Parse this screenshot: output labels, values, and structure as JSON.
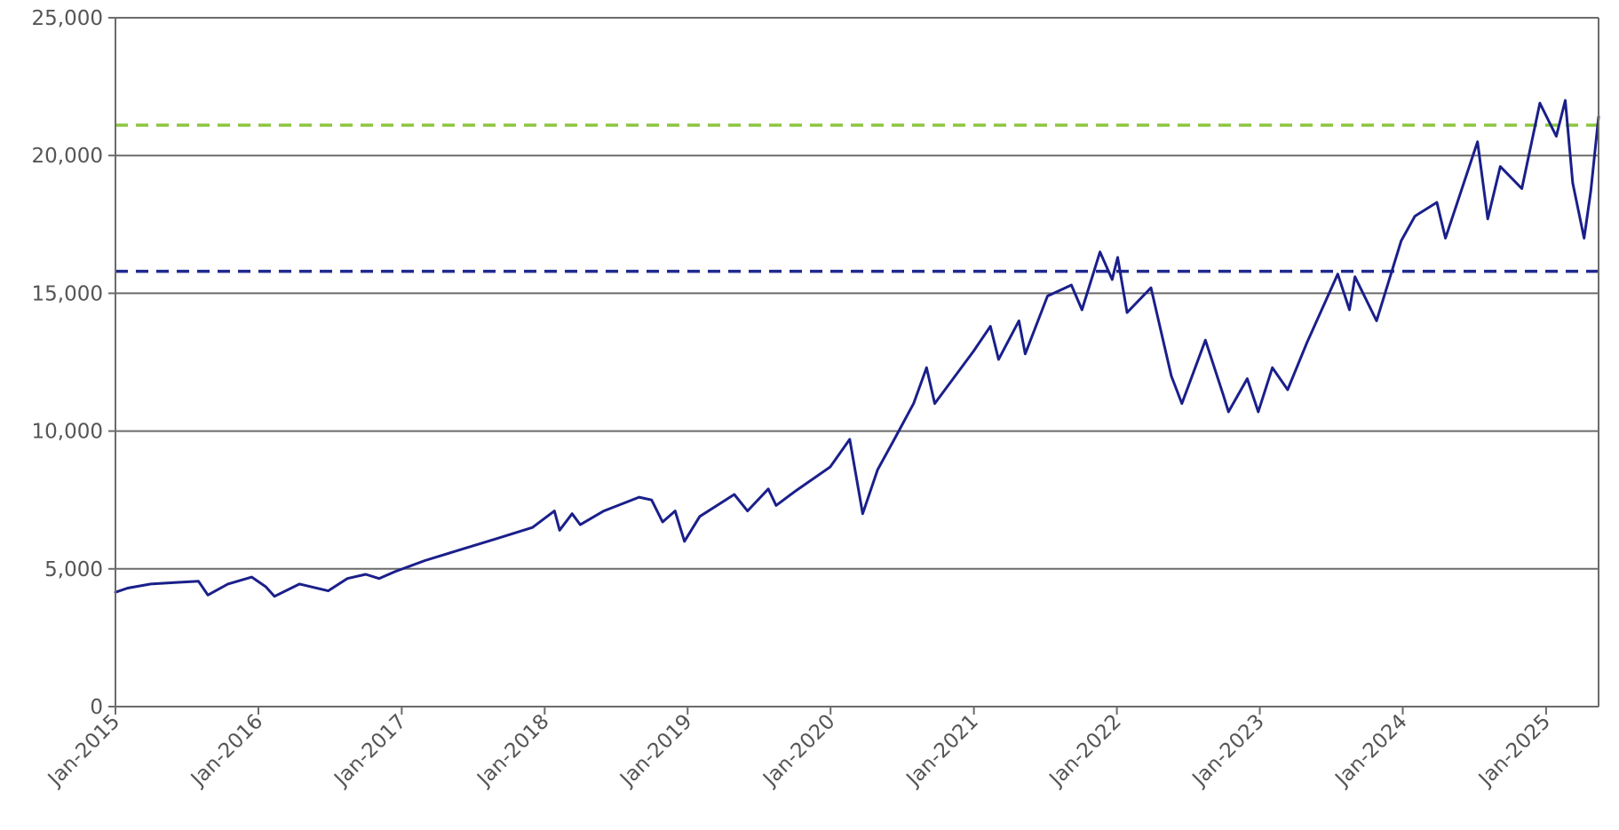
{
  "chart_data": {
    "type": "line",
    "title": "",
    "xlabel": "",
    "ylabel": "",
    "ylim": [
      0,
      25000
    ],
    "yticks": [
      0,
      5000,
      10000,
      15000,
      20000,
      25000
    ],
    "ytick_labels": [
      "0",
      "5,000",
      "10,000",
      "15,000",
      "20,000",
      "25,000"
    ],
    "xlim": [
      "2015-01-01",
      "2025-05-15"
    ],
    "xticks": [
      "2015-01-01",
      "2016-01-01",
      "2017-01-01",
      "2018-01-01",
      "2019-01-01",
      "2020-01-01",
      "2021-01-01",
      "2022-01-01",
      "2023-01-01",
      "2024-01-01",
      "2025-01-01"
    ],
    "xtick_labels": [
      "Jan-2015",
      "Jan-2016",
      "Jan-2017",
      "Jan-2018",
      "Jan-2019",
      "Jan-2020",
      "Jan-2021",
      "Jan-2022",
      "Jan-2023",
      "Jan-2024",
      "Jan-2025"
    ],
    "grid": "horizontal",
    "legend": "none",
    "series": [
      {
        "color": "#1a1f8a",
        "x": [
          "2015-01-01",
          "2015-02-01",
          "2015-04-01",
          "2015-06-01",
          "2015-08-01",
          "2015-08-25",
          "2015-10-15",
          "2015-12-15",
          "2016-01-20",
          "2016-02-11",
          "2016-04-15",
          "2016-06-27",
          "2016-08-15",
          "2016-10-01",
          "2016-11-04",
          "2016-12-15",
          "2017-03-01",
          "2017-06-01",
          "2017-09-01",
          "2017-12-01",
          "2018-01-26",
          "2018-02-08",
          "2018-03-12",
          "2018-04-02",
          "2018-06-01",
          "2018-08-30",
          "2018-10-01",
          "2018-10-29",
          "2018-11-30",
          "2018-12-24",
          "2019-02-01",
          "2019-04-30",
          "2019-06-03",
          "2019-07-26",
          "2019-08-15",
          "2019-10-01",
          "2019-12-31",
          "2020-02-19",
          "2020-03-23",
          "2020-04-30",
          "2020-06-08",
          "2020-07-31",
          "2020-09-02",
          "2020-09-23",
          "2020-12-31",
          "2021-02-12",
          "2021-03-05",
          "2021-04-26",
          "2021-05-12",
          "2021-07-08",
          "2021-09-07",
          "2021-10-04",
          "2021-11-19",
          "2021-12-20",
          "2022-01-03",
          "2022-01-27",
          "2022-03-29",
          "2022-05-20",
          "2022-06-16",
          "2022-08-15",
          "2022-09-30",
          "2022-10-13",
          "2022-11-30",
          "2022-12-28",
          "2023-02-02",
          "2023-03-13",
          "2023-05-01",
          "2023-07-19",
          "2023-08-18",
          "2023-09-01",
          "2023-10-26",
          "2023-12-28",
          "2024-02-01",
          "2024-03-28",
          "2024-04-19",
          "2024-07-10",
          "2024-08-05",
          "2024-09-06",
          "2024-10-31",
          "2024-12-16",
          "2025-01-27",
          "2025-02-19",
          "2025-03-10",
          "2025-04-08",
          "2025-04-25",
          "2025-05-15"
        ],
        "y": [
          4150,
          4300,
          4450,
          4500,
          4550,
          4050,
          4450,
          4700,
          4350,
          4000,
          4450,
          4200,
          4650,
          4800,
          4650,
          4900,
          5300,
          5700,
          6100,
          6500,
          7100,
          6400,
          7000,
          6600,
          7100,
          7600,
          7500,
          6700,
          7100,
          6000,
          6900,
          7700,
          7100,
          7900,
          7300,
          7800,
          8700,
          9700,
          7000,
          8600,
          9600,
          11000,
          12300,
          11000,
          12900,
          13800,
          12600,
          14000,
          12800,
          14900,
          15300,
          14400,
          16500,
          15500,
          16300,
          14300,
          15200,
          12000,
          11000,
          13300,
          11300,
          10700,
          11900,
          10700,
          12300,
          11500,
          13200,
          15700,
          14400,
          15600,
          14000,
          16900,
          17800,
          18300,
          17000,
          20500,
          17700,
          19600,
          18800,
          21900,
          20700,
          22000,
          19000,
          17000,
          18700,
          21400
        ]
      }
    ],
    "reference_lines": [
      {
        "y": 21100,
        "color": "#8cc63f",
        "style": "dashed"
      },
      {
        "y": 15800,
        "color": "#1f2a8f",
        "style": "dashed"
      }
    ],
    "colors": {
      "axis": "#6b6b6b",
      "grid": "#6b6b6b",
      "tick_text": "#555555"
    }
  }
}
